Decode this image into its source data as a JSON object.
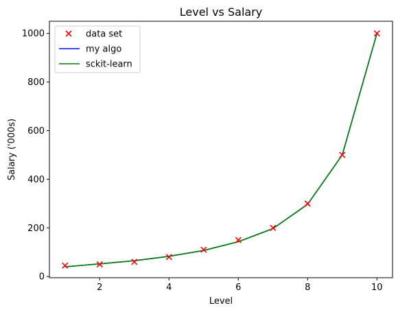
{
  "chart_data": {
    "type": "line",
    "title": "Level vs Salary",
    "xlabel": "Level",
    "ylabel": "Salary ('000s)",
    "xlim": [
      0.55,
      10.45
    ],
    "ylim": [
      -5,
      1050
    ],
    "xticks": [
      2,
      4,
      6,
      8,
      10
    ],
    "yticks": [
      0,
      200,
      400,
      600,
      800,
      1000
    ],
    "grid": false,
    "legend_position": "top-left",
    "series": [
      {
        "name": "data set",
        "kind": "scatter",
        "marker": "x",
        "color": "#ff0000",
        "x": [
          1,
          2,
          3,
          4,
          5,
          6,
          7,
          8,
          9,
          10
        ],
        "y": [
          45,
          50,
          60,
          80,
          110,
          150,
          200,
          300,
          500,
          1000
        ]
      },
      {
        "name": "my algo",
        "kind": "line",
        "color": "#0000ff",
        "x": [
          1,
          2,
          3,
          4,
          5,
          6,
          7,
          8,
          9,
          10
        ],
        "y": [
          40,
          52,
          65,
          83,
          107,
          143,
          197,
          297,
          500,
          1000
        ]
      },
      {
        "name": "sckit-learn",
        "kind": "line",
        "color": "#008000",
        "x": [
          1,
          2,
          3,
          4,
          5,
          6,
          7,
          8,
          9,
          10
        ],
        "y": [
          40,
          52,
          65,
          83,
          107,
          143,
          197,
          297,
          500,
          1000
        ]
      }
    ]
  }
}
